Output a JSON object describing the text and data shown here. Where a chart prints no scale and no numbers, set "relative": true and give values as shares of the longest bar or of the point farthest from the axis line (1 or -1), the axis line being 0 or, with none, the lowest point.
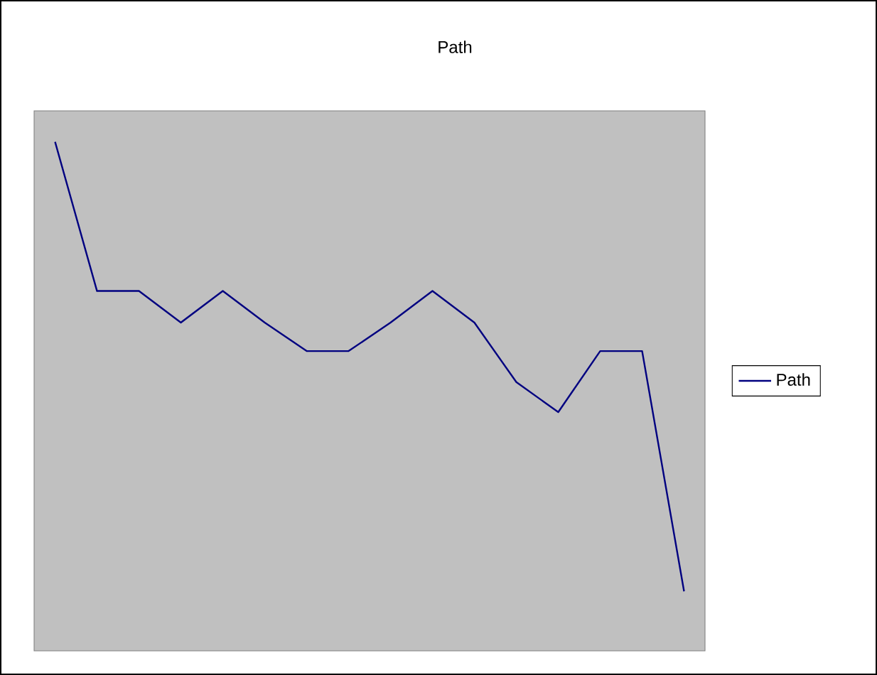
{
  "chart_data": {
    "type": "line",
    "title": "Path",
    "relative": true,
    "legend": "right",
    "categories": [
      null,
      null,
      null,
      null,
      null,
      null,
      null,
      null,
      null,
      null,
      null,
      null,
      null,
      null,
      null,
      null
    ],
    "series": [
      {
        "name": "Path",
        "color": "#000080",
        "values": [
          1,
          0.707,
          0.707,
          0.645,
          0.707,
          0.645,
          0.589,
          0.589,
          0.645,
          0.707,
          0.645,
          0.528,
          0.469,
          0.589,
          0.589,
          0.117
        ]
      }
    ]
  }
}
